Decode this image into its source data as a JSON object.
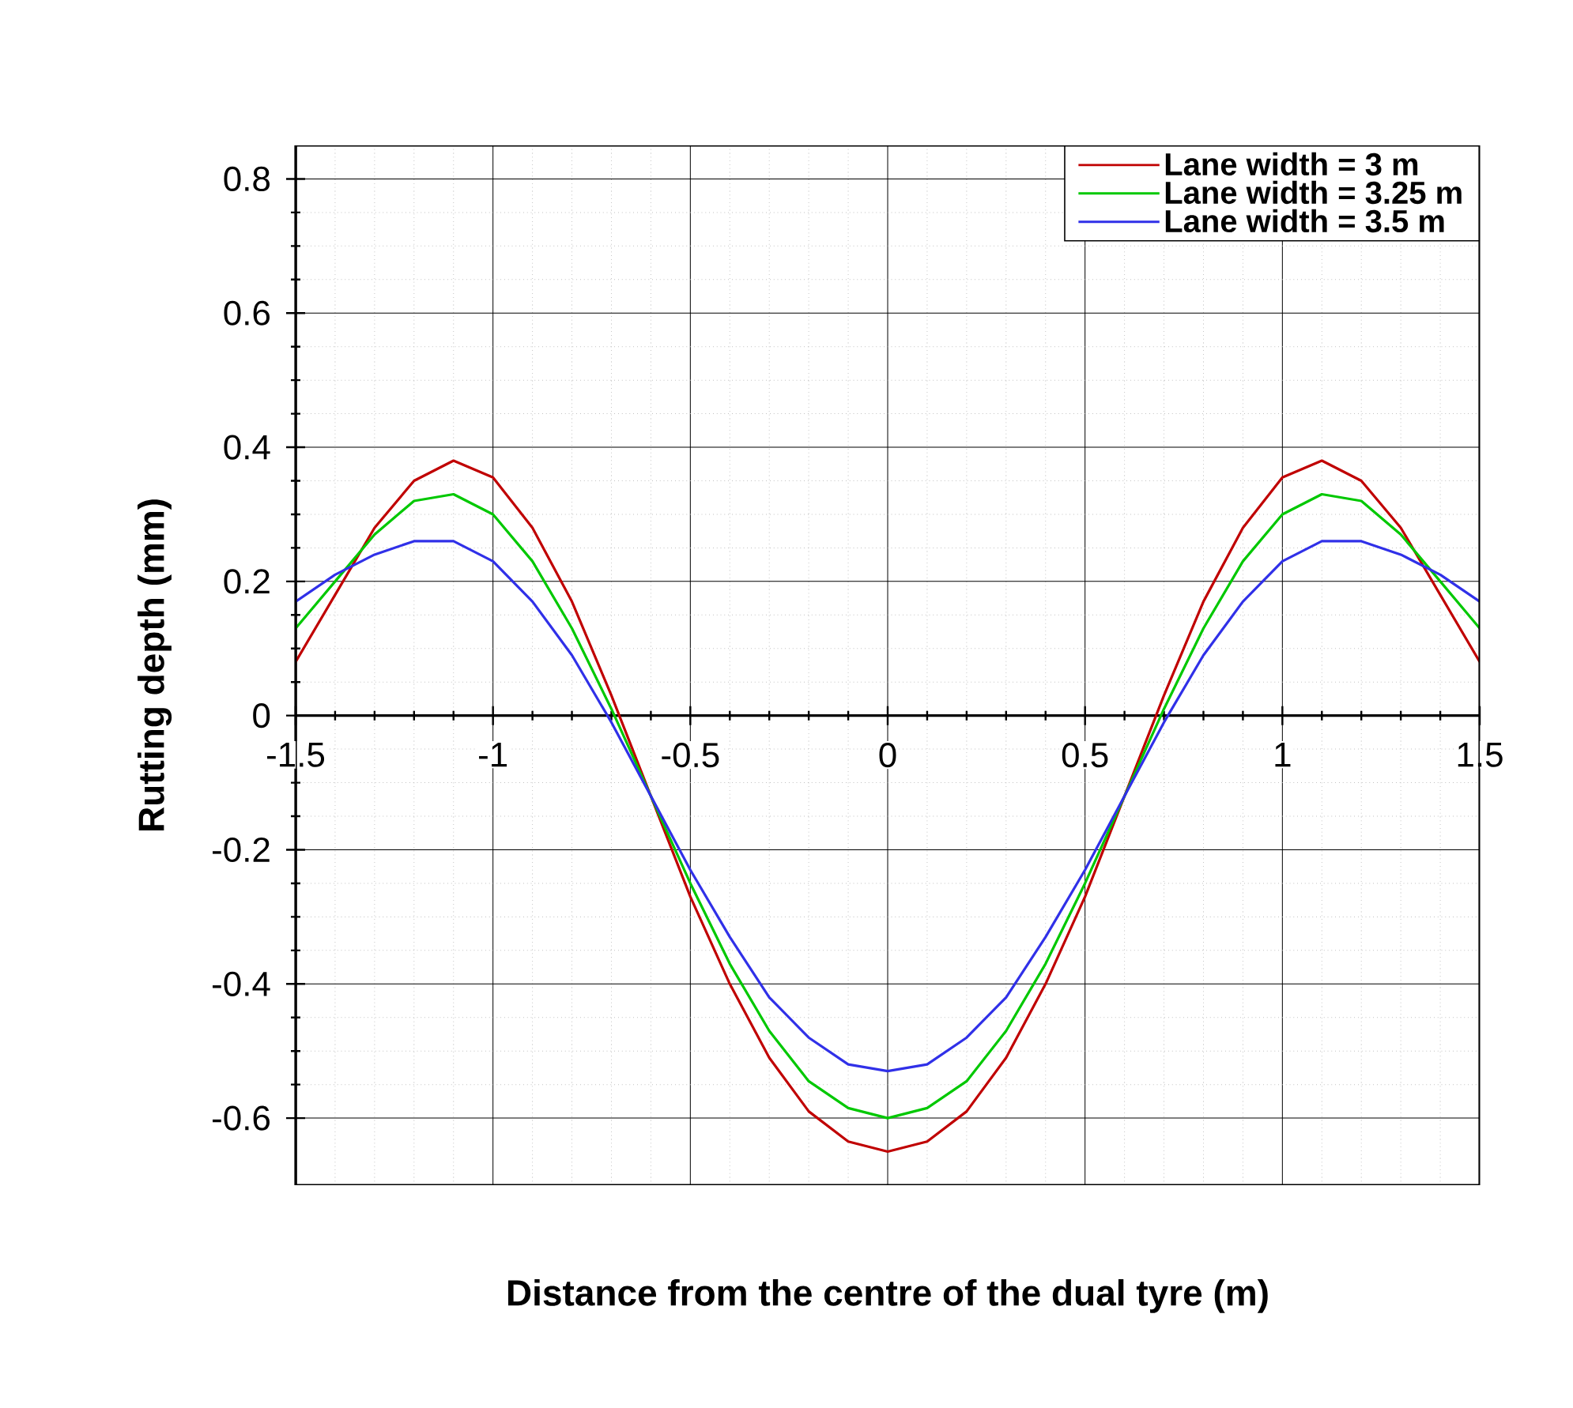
{
  "chart_data": {
    "type": "line",
    "xlabel": "Distance from the centre of the dual tyre (m)",
    "ylabel": "Rutting depth (mm)",
    "x": [
      -1.5,
      -1.4,
      -1.3,
      -1.2,
      -1.1,
      -1.0,
      -0.9,
      -0.8,
      -0.7,
      -0.6,
      -0.5,
      -0.4,
      -0.3,
      -0.2,
      -0.1,
      0,
      0.1,
      0.2,
      0.3,
      0.4,
      0.5,
      0.6,
      0.7,
      0.8,
      0.9,
      1.0,
      1.1,
      1.2,
      1.3,
      1.4,
      1.5
    ],
    "series": [
      {
        "name": "Lane width = 3 m",
        "color": "#c00000",
        "values": [
          0.08,
          0.18,
          0.28,
          0.35,
          0.38,
          0.355,
          0.28,
          0.17,
          0.03,
          -0.12,
          -0.27,
          -0.4,
          -0.51,
          -0.59,
          -0.635,
          -0.65,
          -0.635,
          -0.59,
          -0.51,
          -0.4,
          -0.27,
          -0.12,
          0.03,
          0.17,
          0.28,
          0.355,
          0.38,
          0.35,
          0.28,
          0.18,
          0.08
        ]
      },
      {
        "name": "Lane width = 3.25 m",
        "color": "#00c800",
        "values": [
          0.13,
          0.2,
          0.27,
          0.32,
          0.33,
          0.3,
          0.23,
          0.13,
          0.01,
          -0.12,
          -0.25,
          -0.37,
          -0.47,
          -0.545,
          -0.585,
          -0.6,
          -0.585,
          -0.545,
          -0.47,
          -0.37,
          -0.25,
          -0.12,
          0.01,
          0.13,
          0.23,
          0.3,
          0.33,
          0.32,
          0.27,
          0.2,
          0.13
        ]
      },
      {
        "name": "Lane width = 3.5 m",
        "color": "#3030e8",
        "values": [
          0.17,
          0.21,
          0.24,
          0.26,
          0.26,
          0.23,
          0.17,
          0.09,
          -0.01,
          -0.12,
          -0.23,
          -0.33,
          -0.42,
          -0.48,
          -0.52,
          -0.53,
          -0.52,
          -0.48,
          -0.42,
          -0.33,
          -0.23,
          -0.12,
          -0.01,
          0.09,
          0.17,
          0.23,
          0.26,
          0.26,
          0.24,
          0.21,
          0.17
        ]
      }
    ],
    "xlim": [
      -1.5,
      1.5
    ],
    "ylim": [
      -0.7,
      0.85
    ],
    "xticks": [
      -1.5,
      -1,
      -0.5,
      0,
      0.5,
      1,
      1.5
    ],
    "yticks": [
      -0.6,
      -0.4,
      -0.2,
      0,
      0.2,
      0.4,
      0.6,
      0.8
    ],
    "grid": true,
    "legend": "top right",
    "marker": "none",
    "line_style": "solid"
  }
}
